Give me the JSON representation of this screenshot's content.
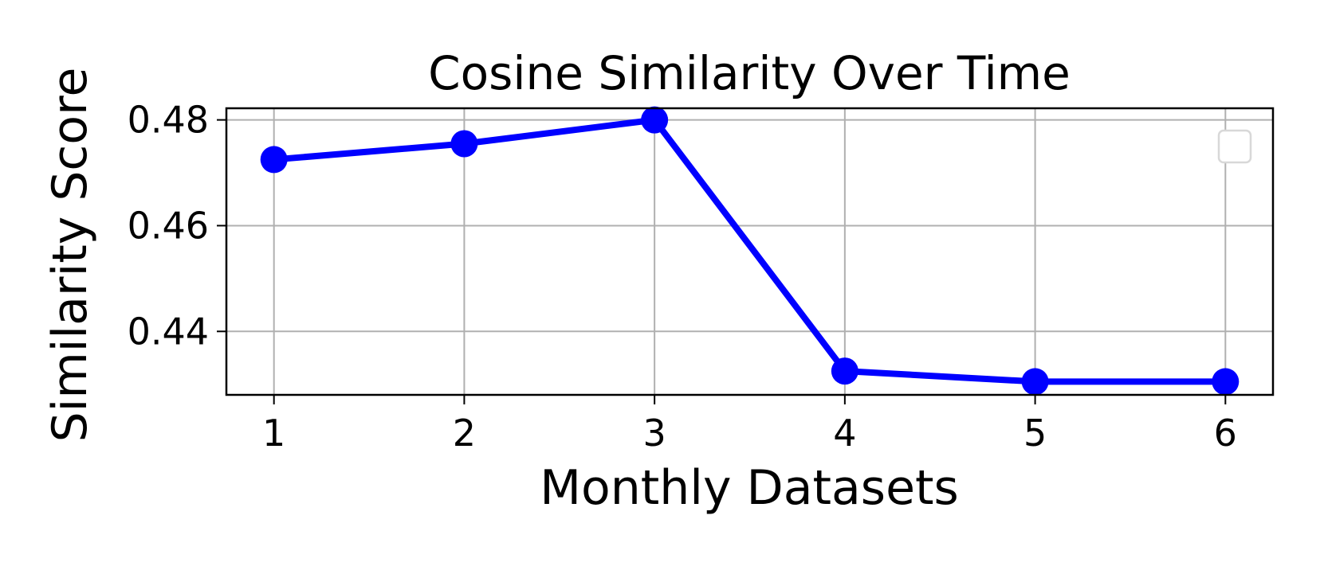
{
  "chart_data": {
    "type": "line",
    "title": "Cosine Similarity Over Time",
    "xlabel": "Monthly Datasets",
    "ylabel": "Similarity Score",
    "x": [
      1,
      2,
      3,
      4,
      5,
      6
    ],
    "xticks": [
      "1",
      "2",
      "3",
      "4",
      "5",
      "6"
    ],
    "yticks": [
      0.44,
      0.46,
      0.48
    ],
    "ytick_labels": [
      "0.44",
      "0.46",
      "0.48"
    ],
    "xlim": [
      0.75,
      6.25
    ],
    "ylim": [
      0.428,
      0.4822
    ],
    "grid": true,
    "legend": "top-right (empty)",
    "series": [
      {
        "values": [
          0.4725,
          0.4755,
          0.48,
          0.4325,
          0.4305,
          0.4305
        ],
        "color": "#0000ff",
        "marker": "circle"
      }
    ]
  }
}
